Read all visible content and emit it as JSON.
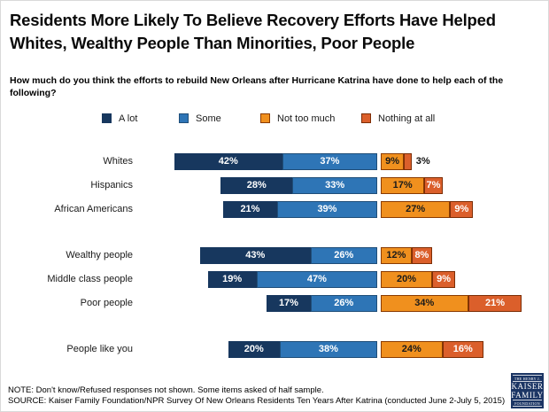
{
  "header": {
    "title_lines": [
      "Residents More Likely To Believe Recovery Efforts Have Helped",
      "Whites, Wealthy People Than Minorities, Poor People"
    ],
    "subtitle_lines": [
      "How much do you think the efforts to rebuild New Orleans after Hurricane Katrina have done to help each of the",
      "following?"
    ]
  },
  "chart_data": {
    "type": "bar",
    "orientation": "horizontal",
    "stacked": true,
    "diverging": true,
    "value_suffix": "%",
    "title": "Residents More Likely To Believe Recovery Efforts Have Helped Whites, Wealthy People Than Minorities, Poor People",
    "subtitle": "How much do you think the efforts to rebuild New Orleans after Hurricane Katrina have done to help each of the following?",
    "legend_position": "top",
    "series": [
      {
        "name": "A lot",
        "color": "#17375E",
        "border": "#17375E",
        "text_color": "#ffffff"
      },
      {
        "name": "Some",
        "color": "#2E75B6",
        "border": "#1F4E79",
        "text_color": "#ffffff"
      },
      {
        "name": "Not too much",
        "color": "#F0901E",
        "border": "#8A3B00",
        "text_color": "#1a1a1a"
      },
      {
        "name": "Nothing at all",
        "color": "#DB5F2B",
        "border": "#7C2D05",
        "text_color": "#ffffff"
      }
    ],
    "groups": [
      {
        "rows": [
          {
            "label": "Whites",
            "values": [
              42,
              37,
              9,
              3
            ]
          },
          {
            "label": "Hispanics",
            "values": [
              28,
              33,
              17,
              7
            ]
          },
          {
            "label": "African Americans",
            "values": [
              21,
              39,
              27,
              9
            ]
          }
        ]
      },
      {
        "rows": [
          {
            "label": "Wealthy people",
            "values": [
              43,
              26,
              12,
              8
            ]
          },
          {
            "label": "Middle class people",
            "values": [
              19,
              47,
              20,
              9
            ]
          },
          {
            "label": "Poor people",
            "values": [
              17,
              26,
              34,
              21
            ]
          }
        ]
      },
      {
        "rows": [
          {
            "label": "People like you",
            "values": [
              20,
              38,
              24,
              16
            ]
          }
        ]
      }
    ]
  },
  "footer": {
    "note": "NOTE: Don't know/Refused responses not shown. Some items asked of half sample.",
    "source": "SOURCE: Kaiser Family Foundation/NPR Survey Of New Orleans Residents Ten Years After Katrina (conducted June 2-July 5, 2015)"
  },
  "logo": {
    "line1": "THE HENRY J.",
    "line2": "KAISER",
    "line3": "FAMILY",
    "line4": "FOUNDATION",
    "color": "#1B3564"
  }
}
